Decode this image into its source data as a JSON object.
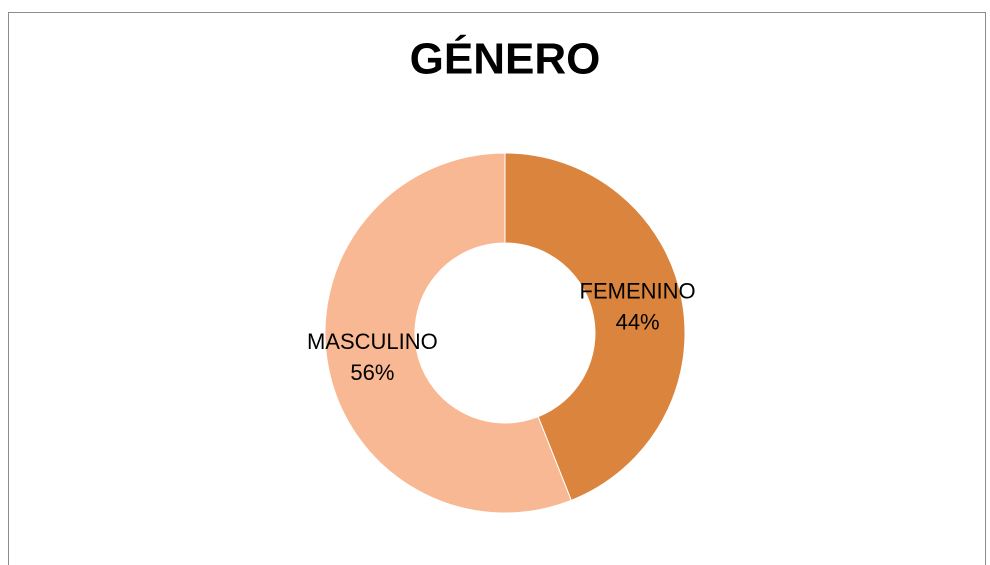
{
  "chart_data": {
    "type": "donut",
    "title": "GÉNERO",
    "categories": [
      "FEMENINO",
      "MASCULINO"
    ],
    "values": [
      44,
      56
    ],
    "value_labels": [
      "44%",
      "56%"
    ],
    "colors": [
      "#db843d",
      "#f9b894"
    ]
  }
}
